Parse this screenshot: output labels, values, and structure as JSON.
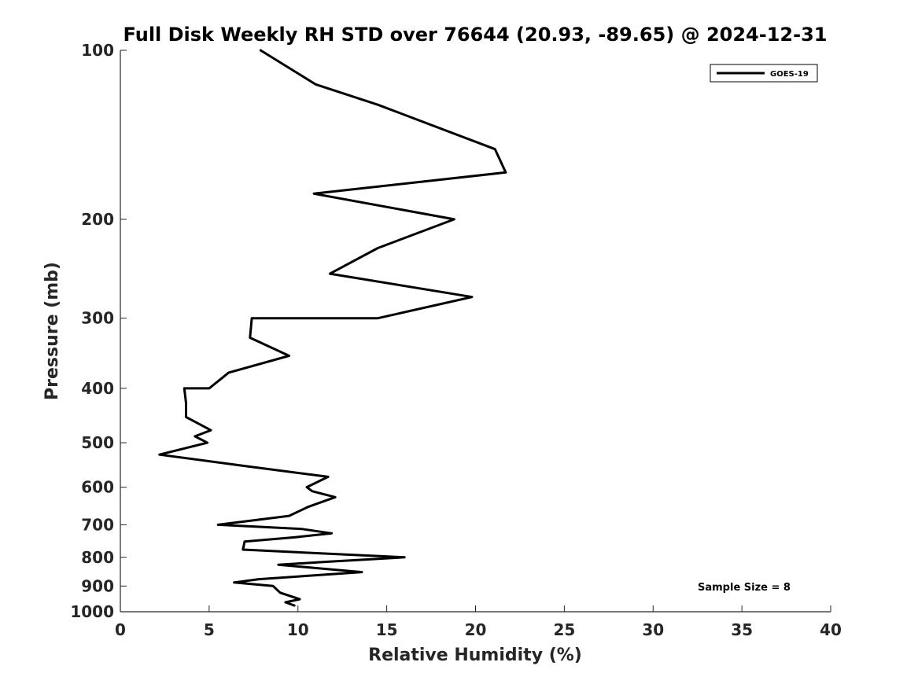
{
  "chart_data": {
    "type": "line",
    "title": "Full Disk Weekly RH STD over 76644 (20.93, -89.65) @ 2024-12-31",
    "xlabel": "Relative Humidity (%)",
    "ylabel": "Pressure (mb)",
    "xlim": [
      0,
      40
    ],
    "ylim": [
      100,
      1000
    ],
    "y_scale": "log",
    "y_reversed": true,
    "x_ticks": [
      "0",
      "5",
      "10",
      "15",
      "20",
      "25",
      "30",
      "35",
      "40"
    ],
    "y_ticks": [
      "100",
      "200",
      "300",
      "400",
      "500",
      "600",
      "700",
      "800",
      "900",
      "1000"
    ],
    "grid": false,
    "legend_position": "top-right",
    "annotation": "Sample Size = 8",
    "series": [
      {
        "name": "GOES-19",
        "color": "#000000",
        "points": [
          [
            7.9,
            100
          ],
          [
            11.0,
            115
          ],
          [
            14.5,
            125
          ],
          [
            21.1,
            150
          ],
          [
            21.7,
            165
          ],
          [
            10.9,
            180
          ],
          [
            18.8,
            200
          ],
          [
            14.5,
            225
          ],
          [
            11.8,
            250
          ],
          [
            19.8,
            275
          ],
          [
            14.5,
            300
          ],
          [
            7.4,
            300
          ],
          [
            7.3,
            325
          ],
          [
            9.5,
            350
          ],
          [
            6.1,
            375
          ],
          [
            5.0,
            400
          ],
          [
            3.6,
            400
          ],
          [
            3.7,
            425
          ],
          [
            3.7,
            450
          ],
          [
            5.1,
            475
          ],
          [
            4.2,
            487
          ],
          [
            4.9,
            500
          ],
          [
            2.2,
            525
          ],
          [
            7.0,
            550
          ],
          [
            11.7,
            575
          ],
          [
            10.5,
            600
          ],
          [
            10.8,
            610
          ],
          [
            12.1,
            625
          ],
          [
            10.6,
            650
          ],
          [
            9.5,
            675
          ],
          [
            5.5,
            700
          ],
          [
            10.2,
            712
          ],
          [
            11.9,
            725
          ],
          [
            9.8,
            737
          ],
          [
            7.0,
            750
          ],
          [
            6.9,
            775
          ],
          [
            16.0,
            800
          ],
          [
            11.5,
            815
          ],
          [
            8.9,
            825
          ],
          [
            13.6,
            850
          ],
          [
            7.8,
            875
          ],
          [
            6.4,
            887
          ],
          [
            8.6,
            900
          ],
          [
            9.0,
            925
          ],
          [
            10.1,
            950
          ],
          [
            9.3,
            962
          ],
          [
            9.8,
            975
          ]
        ]
      }
    ]
  }
}
